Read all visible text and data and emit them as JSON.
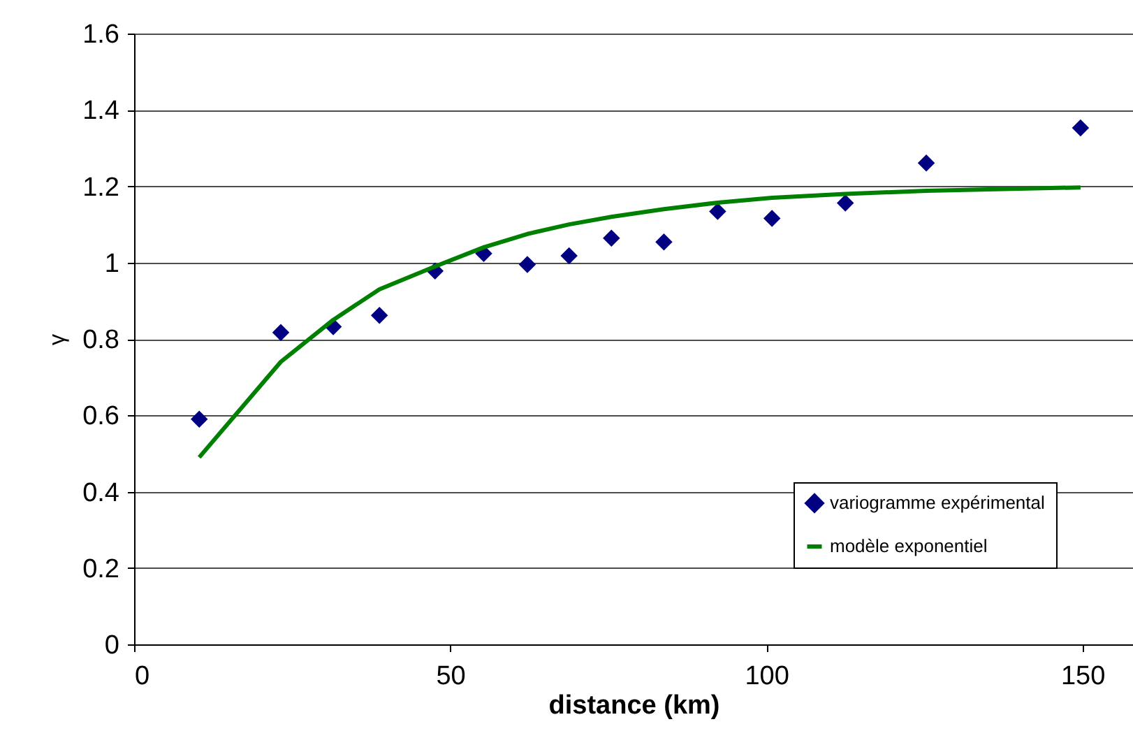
{
  "chart_data": {
    "type": "scatter",
    "xlabel": "distance (km)",
    "ylabel": "γ",
    "xlim": [
      0,
      158
    ],
    "xticks": [
      0,
      50,
      100,
      150
    ],
    "ylim": [
      0,
      1.6
    ],
    "yticks": [
      0,
      0.2,
      0.4,
      0.6,
      0.8,
      1,
      1.2,
      1.4,
      1.6
    ],
    "grid": "y",
    "legend": "bottom right",
    "series": [
      {
        "name": "variogramme expérimental",
        "marker": "diamond",
        "color": "#000080",
        "x": [
          10.3,
          23.2,
          31.5,
          38.8,
          47.6,
          55.3,
          62.2,
          68.8,
          75.5,
          83.8,
          92.3,
          100.9,
          112.5,
          125.3,
          149.7
        ],
        "values": [
          0.59,
          0.817,
          0.832,
          0.862,
          0.978,
          1.024,
          0.995,
          1.018,
          1.064,
          1.054,
          1.134,
          1.116,
          1.156,
          1.261,
          1.353
        ]
      },
      {
        "name": "modèle exponentiel",
        "type": "line",
        "line_style": "solid",
        "color": "#008000",
        "x": [
          10.3,
          23.2,
          31.5,
          38.8,
          47.6,
          55.3,
          62.2,
          68.8,
          75.5,
          83.8,
          92.3,
          100.9,
          112.5,
          125.3,
          149.7
        ],
        "values": [
          0.49,
          0.74,
          0.85,
          0.93,
          0.99,
          1.04,
          1.075,
          1.1,
          1.12,
          1.14,
          1.157,
          1.17,
          1.18,
          1.188,
          1.197
        ]
      }
    ]
  }
}
